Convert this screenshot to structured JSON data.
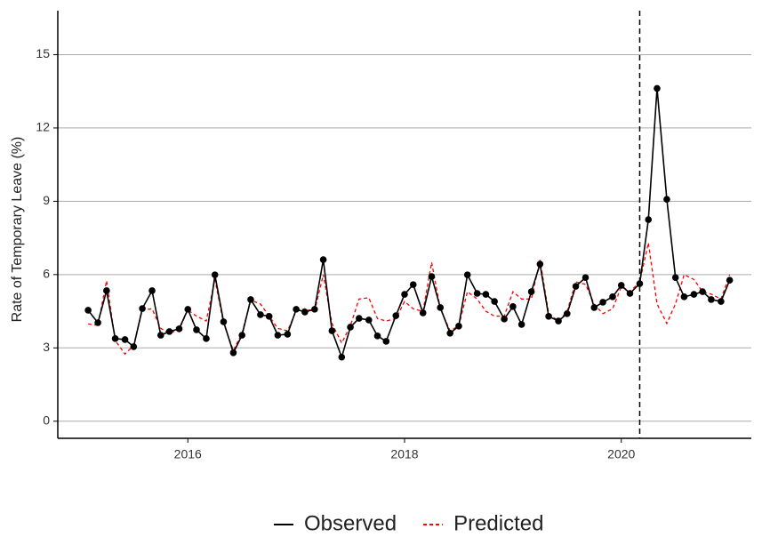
{
  "chart_data": {
    "type": "line",
    "ylabel": "Rate of Temporary Leave (%)",
    "x": [
      2015.08,
      2015.17,
      2015.25,
      2015.33,
      2015.42,
      2015.5,
      2015.58,
      2015.67,
      2015.75,
      2015.83,
      2015.92,
      2016,
      2016.08,
      2016.17,
      2016.25,
      2016.33,
      2016.42,
      2016.5,
      2016.58,
      2016.67,
      2016.75,
      2016.83,
      2016.92,
      2017,
      2017.08,
      2017.17,
      2017.25,
      2017.33,
      2017.42,
      2017.5,
      2017.58,
      2017.67,
      2017.75,
      2017.83,
      2017.92,
      2018,
      2018.08,
      2018.17,
      2018.25,
      2018.33,
      2018.42,
      2018.5,
      2018.58,
      2018.67,
      2018.75,
      2018.83,
      2018.92,
      2019,
      2019.08,
      2019.17,
      2019.25,
      2019.33,
      2019.42,
      2019.5,
      2019.58,
      2019.67,
      2019.75,
      2019.83,
      2019.92,
      2020,
      2020.08,
      2020.17,
      2020.25,
      2020.33,
      2020.42,
      2020.5,
      2020.58,
      2020.67,
      2020.75,
      2020.83,
      2020.92,
      2021
    ],
    "series": [
      {
        "name": "Observed",
        "color": "#000000",
        "dashed": false,
        "markers": true,
        "values": [
          4.54,
          4.03,
          5.34,
          3.38,
          3.34,
          3.05,
          4.61,
          5.34,
          3.52,
          3.67,
          3.78,
          4.58,
          3.74,
          3.38,
          5.99,
          4.07,
          2.8,
          3.52,
          4.98,
          4.36,
          4.29,
          3.52,
          3.56,
          4.58,
          4.47,
          4.58,
          6.61,
          3.7,
          2.62,
          3.85,
          4.21,
          4.14,
          3.49,
          3.27,
          4.32,
          5.19,
          5.59,
          4.43,
          5.92,
          4.65,
          3.6,
          3.89,
          5.99,
          5.23,
          5.19,
          4.9,
          4.18,
          4.69,
          3.96,
          5.3,
          6.43,
          4.29,
          4.1,
          4.4,
          5.52,
          5.88,
          4.65,
          4.87,
          5.09,
          5.56,
          5.23,
          5.63,
          8.25,
          13.62,
          9.08,
          5.88,
          5.09,
          5.19,
          5.3,
          4.98,
          4.9,
          5.77
        ]
      },
      {
        "name": "Predicted",
        "color": "#ff0000",
        "dashed": true,
        "markers": false,
        "values": [
          3.98,
          3.92,
          5.75,
          3.3,
          2.75,
          3.1,
          4.55,
          4.6,
          3.8,
          3.6,
          3.75,
          4.55,
          4.3,
          4.1,
          5.8,
          4.0,
          2.9,
          3.6,
          4.95,
          4.8,
          4.3,
          3.8,
          3.7,
          4.5,
          4.6,
          4.5,
          6.0,
          4.0,
          3.2,
          3.9,
          5.0,
          5.05,
          4.2,
          4.1,
          4.2,
          4.9,
          4.6,
          4.5,
          6.5,
          4.6,
          3.7,
          3.9,
          5.3,
          5.0,
          4.5,
          4.3,
          4.3,
          5.3,
          5.0,
          5.0,
          6.6,
          4.4,
          4.1,
          4.5,
          5.7,
          5.6,
          4.8,
          4.4,
          4.6,
          5.5,
          5.3,
          5.7,
          7.3,
          4.8,
          4.0,
          4.8,
          6.0,
          5.8,
          5.3,
          5.2,
          5.0,
          6.0
        ]
      }
    ],
    "xlim": [
      2014.8,
      2021.2
    ],
    "xticks": [
      2016,
      2018,
      2020
    ],
    "ylim": [
      -0.7,
      16.8
    ],
    "yticks": [
      0,
      3,
      6,
      9,
      12,
      15
    ],
    "grid": true,
    "legend": "bottom",
    "vline": 2020.17
  }
}
